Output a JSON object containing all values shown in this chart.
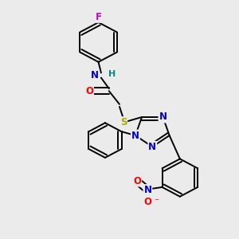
{
  "background_color": "#ebebeb",
  "fig_size": [
    3.0,
    3.0
  ],
  "dpi": 100,
  "atom_colors": {
    "C": "#000000",
    "N": "#0000cc",
    "O": "#ff0000",
    "S": "#aaaa00",
    "F": "#cc00cc",
    "H": "#008888"
  },
  "bond_color": "#000000",
  "bond_width": 1.4,
  "font_size_atom": 8.5
}
